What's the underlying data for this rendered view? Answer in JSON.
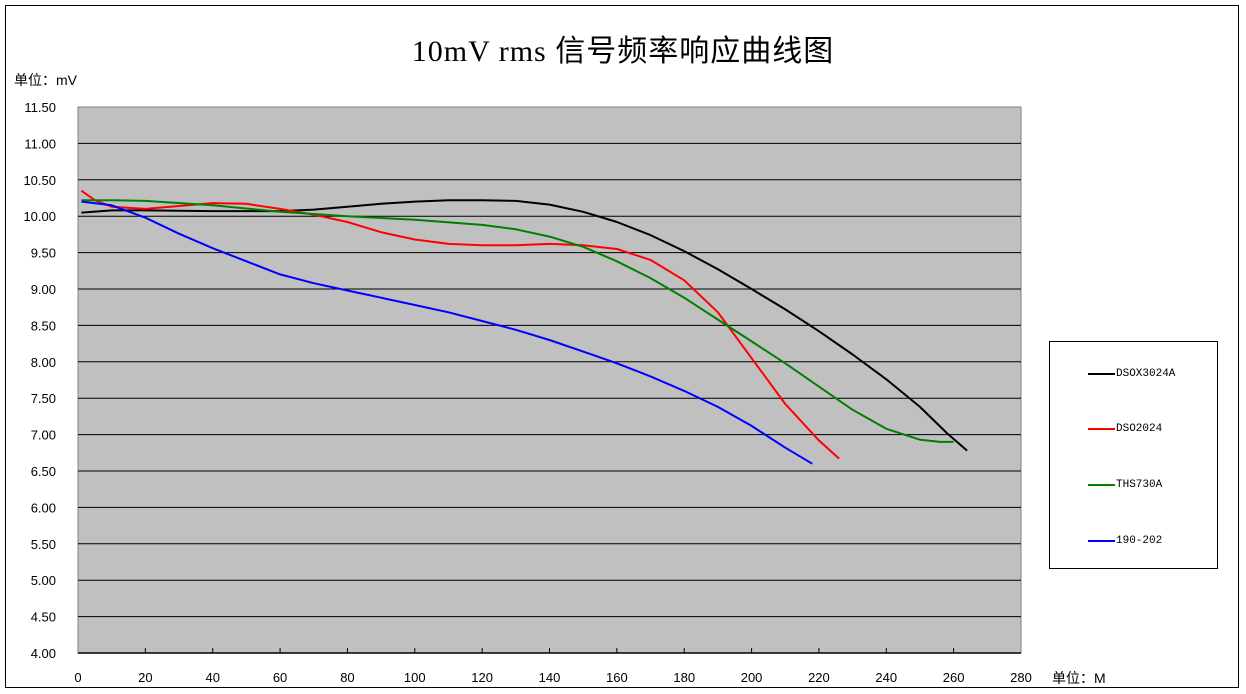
{
  "chart_data": {
    "type": "line",
    "title": "10mV rms 信号频率响应曲线图",
    "xlabel": "单位：M",
    "ylabel": "单位：mV",
    "xlim": [
      0,
      280
    ],
    "ylim": [
      4.0,
      11.5
    ],
    "grid": true,
    "plot_background": "#c0c0c0",
    "legend_position": "right",
    "x_ticks": [
      "0",
      "20",
      "40",
      "60",
      "80",
      "100",
      "120",
      "140",
      "160",
      "180",
      "200",
      "220",
      "240",
      "260",
      "280"
    ],
    "y_ticks": [
      "11.50",
      "11.00",
      "10.50",
      "10.00",
      "9.50",
      "9.00",
      "8.50",
      "8.00",
      "7.50",
      "7.00",
      "6.50",
      "6.00",
      "5.50",
      "5.00",
      "4.50",
      "4.00"
    ],
    "series": [
      {
        "name": "DSOX3024A",
        "color": "#000000",
        "x": [
          1,
          10,
          20,
          40,
          60,
          70,
          80,
          90,
          100,
          110,
          120,
          130,
          140,
          150,
          160,
          170,
          180,
          190,
          200,
          210,
          220,
          230,
          240,
          250,
          258,
          264
        ],
        "y": [
          10.05,
          10.08,
          10.08,
          10.07,
          10.07,
          10.09,
          10.13,
          10.17,
          10.2,
          10.22,
          10.22,
          10.21,
          10.16,
          10.06,
          9.92,
          9.74,
          9.52,
          9.27,
          9.0,
          8.72,
          8.42,
          8.1,
          7.76,
          7.38,
          7.02,
          6.78
        ]
      },
      {
        "name": "DSO2024",
        "color": "#ff0000",
        "x": [
          1,
          5,
          10,
          20,
          30,
          40,
          50,
          60,
          70,
          80,
          90,
          100,
          110,
          120,
          130,
          140,
          150,
          160,
          170,
          180,
          190,
          200,
          210,
          220,
          226
        ],
        "y": [
          10.35,
          10.22,
          10.13,
          10.1,
          10.14,
          10.18,
          10.17,
          10.1,
          10.02,
          9.92,
          9.78,
          9.68,
          9.62,
          9.6,
          9.6,
          9.62,
          9.6,
          9.55,
          9.4,
          9.12,
          8.68,
          8.05,
          7.42,
          6.92,
          6.67
        ]
      },
      {
        "name": "THS730A",
        "color": "#008000",
        "x": [
          1,
          10,
          20,
          40,
          60,
          80,
          100,
          120,
          130,
          140,
          150,
          160,
          170,
          180,
          190,
          200,
          210,
          220,
          230,
          240,
          250,
          256,
          260
        ],
        "y": [
          10.22,
          10.22,
          10.21,
          10.15,
          10.06,
          10.0,
          9.95,
          9.88,
          9.82,
          9.72,
          9.58,
          9.38,
          9.15,
          8.88,
          8.58,
          8.28,
          7.98,
          7.66,
          7.34,
          7.08,
          6.93,
          6.9,
          6.9
        ]
      },
      {
        "name": "190-202",
        "color": "#0000ff",
        "x": [
          1,
          10,
          20,
          30,
          40,
          50,
          60,
          70,
          80,
          90,
          100,
          110,
          120,
          130,
          140,
          150,
          160,
          170,
          180,
          190,
          200,
          210,
          218
        ],
        "y": [
          10.2,
          10.15,
          9.98,
          9.76,
          9.56,
          9.38,
          9.2,
          9.08,
          8.98,
          8.88,
          8.78,
          8.68,
          8.56,
          8.44,
          8.3,
          8.14,
          7.98,
          7.8,
          7.6,
          7.38,
          7.12,
          6.82,
          6.6
        ]
      }
    ]
  },
  "labels": {
    "title": "10mV rms 信号频率响应曲线图",
    "y_unit": "单位：mV",
    "x_unit": "单位：M"
  },
  "legend": [
    {
      "name": "DSOX3024A",
      "color": "#000000"
    },
    {
      "name": "DSO2024",
      "color": "#ff0000"
    },
    {
      "name": "THS730A",
      "color": "#008000"
    },
    {
      "name": "190-202",
      "color": "#0000ff"
    }
  ]
}
